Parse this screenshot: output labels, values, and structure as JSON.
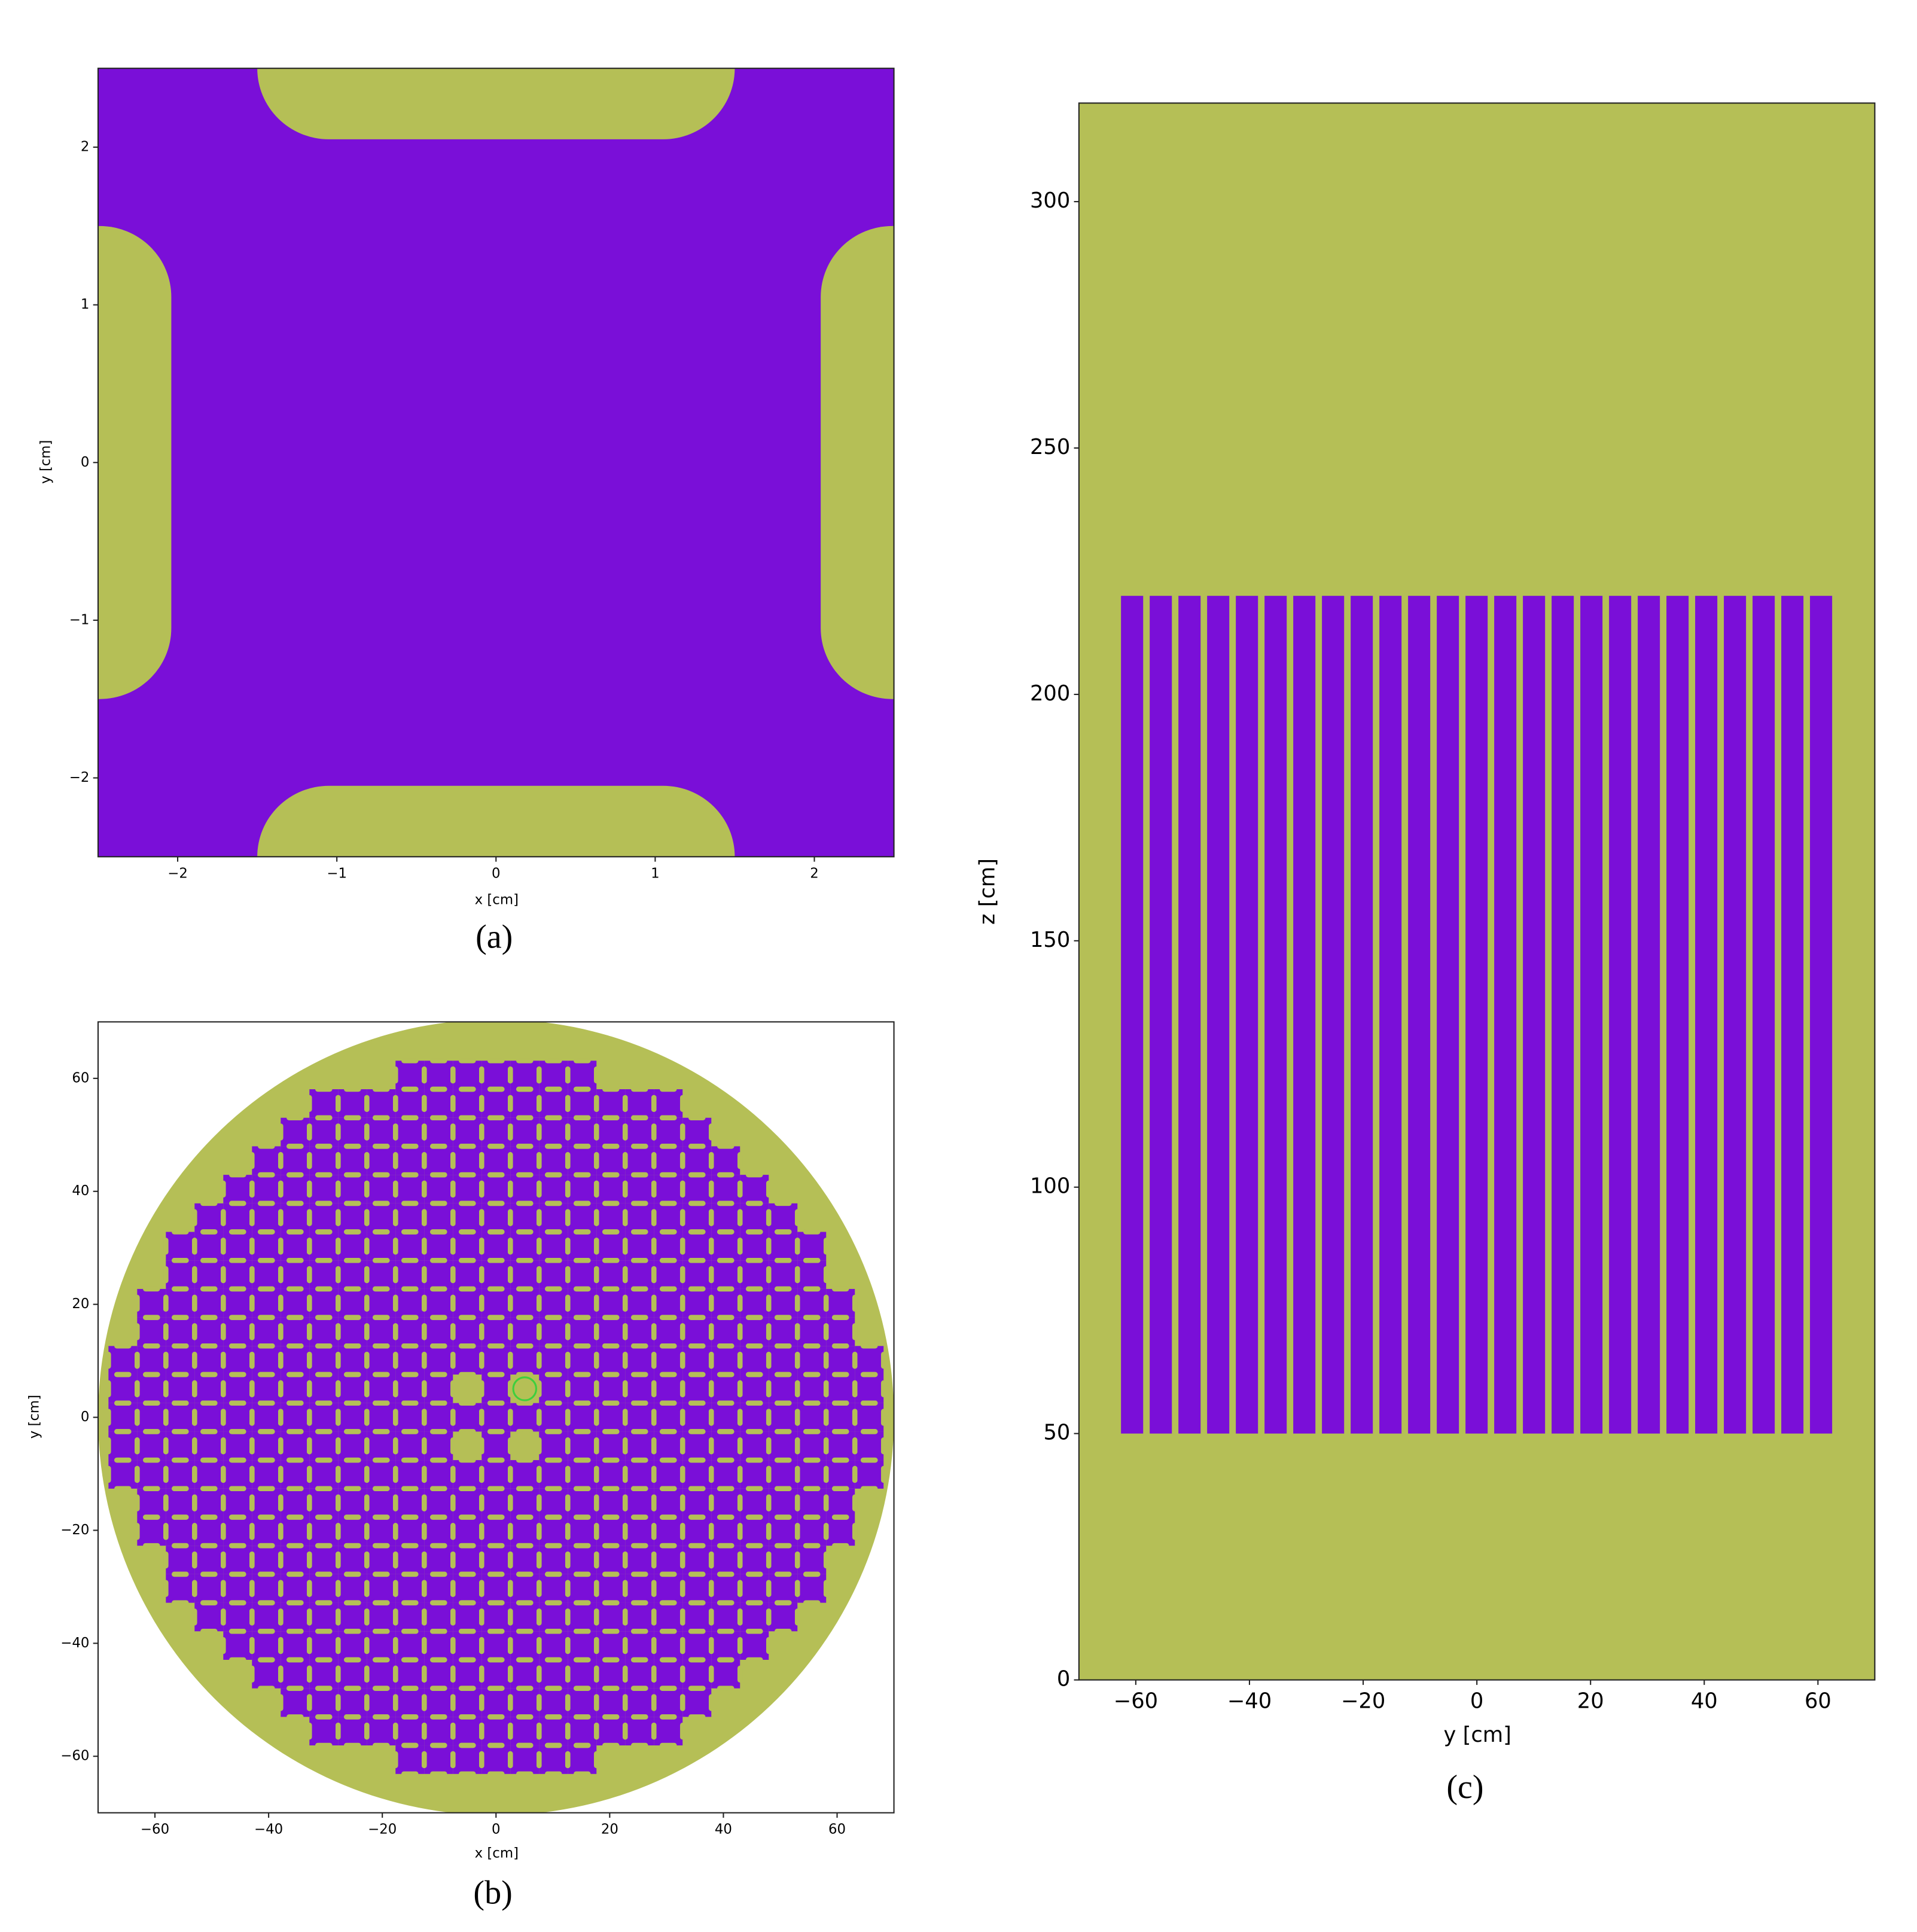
{
  "chart_data": [
    {
      "type": "geometry",
      "caption": "(a)",
      "xlabel": "x [cm]",
      "ylabel": "y [cm]",
      "xlim": [
        -2.5,
        2.5
      ],
      "ylim": [
        -2.5,
        2.5
      ],
      "xticks": [
        {
          "value": -2,
          "label": "−2"
        },
        {
          "value": -1,
          "label": "−1"
        },
        0,
        1,
        2
      ],
      "yticks": [
        {
          "value": -2,
          "label": "−2"
        },
        {
          "value": -1,
          "label": "−1"
        },
        0,
        1,
        2
      ],
      "background": "#7a0fd8",
      "regions": [
        {
          "x": [
            -1.5,
            1.5
          ],
          "y": [
            2.05,
            2.5
          ],
          "r": 0.45,
          "color": "#b5bf56"
        },
        {
          "x": [
            -1.5,
            1.5
          ],
          "y": [
            -2.5,
            -2.05
          ],
          "r": 0.45,
          "color": "#b5bf56"
        },
        {
          "x": [
            -2.5,
            -2.04
          ],
          "y": [
            -1.5,
            1.5
          ],
          "r": 0.45,
          "color": "#b5bf56"
        },
        {
          "x": [
            2.04,
            2.5
          ],
          "y": [
            -1.5,
            1.5
          ],
          "r": 0.45,
          "color": "#b5bf56"
        }
      ]
    },
    {
      "type": "geometry",
      "caption": "(b)",
      "xlabel": "x [cm]",
      "ylabel": "y [cm]",
      "xlim": [
        -70,
        70
      ],
      "ylim": [
        -70,
        70
      ],
      "xticks": [
        {
          "value": -60,
          "label": "−60"
        },
        {
          "value": -40,
          "label": "−40"
        },
        {
          "value": -20,
          "label": "−20"
        },
        0,
        20,
        40,
        60
      ],
      "yticks": [
        {
          "value": -60,
          "label": "−60"
        },
        {
          "value": -40,
          "label": "−40"
        },
        {
          "value": -20,
          "label": "−20"
        },
        0,
        20,
        40,
        60
      ],
      "background": "#ffffff",
      "vessel": {
        "radius": 70,
        "color": "#b5bf56"
      },
      "lattice": {
        "pitch": 5.05,
        "row_half_counts": [
          3,
          6,
          7,
          8,
          9,
          10,
          11,
          11,
          12,
          12,
          13,
          13,
          13,
          13,
          13,
          12,
          12,
          11,
          11,
          10,
          9,
          8,
          7,
          6,
          3
        ],
        "color": "#7a0fd8",
        "gap_color": "#b5bf56",
        "gap_length": 3,
        "gap_depth": 0.45,
        "holes": [
          [
            -1,
            1
          ],
          [
            1,
            1
          ],
          [
            -1,
            -1
          ],
          [
            1,
            -1
          ]
        ],
        "marker": {
          "cell": [
            1,
            1
          ],
          "color": "#3ecf3e"
        }
      }
    },
    {
      "type": "geometry",
      "caption": "(c)",
      "xlabel": "y [cm]",
      "ylabel": "z [cm]",
      "xlim": [
        -70,
        70
      ],
      "ylim": [
        0,
        320
      ],
      "xticks": [
        {
          "value": -60,
          "label": "−60"
        },
        {
          "value": -40,
          "label": "−40"
        },
        {
          "value": -20,
          "label": "−20"
        },
        0,
        20,
        40,
        60
      ],
      "yticks": [
        0,
        50,
        100,
        150,
        200,
        250,
        300
      ],
      "background": "#b5bf56",
      "rods": {
        "y0": -62.6,
        "pitch": 5.05,
        "count": 25,
        "width": 3.9,
        "z": [
          50,
          220
        ],
        "color": "#7a0fd8"
      }
    }
  ]
}
